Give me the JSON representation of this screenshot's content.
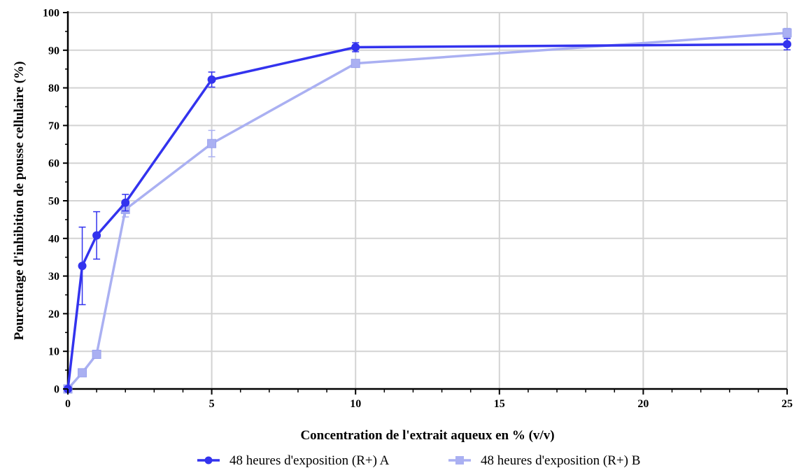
{
  "chart_data": {
    "type": "line",
    "title": "",
    "xlabel": "Concentration de l'extrait aqueux en % (v/v)",
    "ylabel": "Pourcentage d'inhibition de pousse cellulaire (%)",
    "xlim": [
      0,
      25
    ],
    "ylim": [
      0,
      100
    ],
    "x_ticks": [
      0,
      5,
      10,
      15,
      20,
      25
    ],
    "y_ticks": [
      0,
      10,
      20,
      30,
      40,
      50,
      60,
      70,
      80,
      90,
      100
    ],
    "grid": true,
    "legend_position": "bottom",
    "series": [
      {
        "name": "48 heures d'exposition (R+) A",
        "color": "#3333ee",
        "marker": "circle",
        "x": [
          0,
          0.5,
          1,
          2,
          5,
          10,
          25
        ],
        "y": [
          0,
          32.7,
          40.8,
          49.5,
          82.2,
          90.8,
          91.6
        ],
        "yerr": [
          0,
          10.3,
          6.3,
          2.2,
          2.0,
          1.2,
          1.5
        ]
      },
      {
        "name": "48 heures d'exposition (R+) B",
        "color": "#aab0f2",
        "marker": "square",
        "x": [
          0,
          0.5,
          1,
          2,
          5,
          10,
          25
        ],
        "y": [
          0,
          4.3,
          9.2,
          47.7,
          65.2,
          86.5,
          94.6
        ],
        "yerr": [
          0,
          0,
          0,
          2.0,
          3.5,
          0.8,
          1.2
        ]
      }
    ]
  }
}
